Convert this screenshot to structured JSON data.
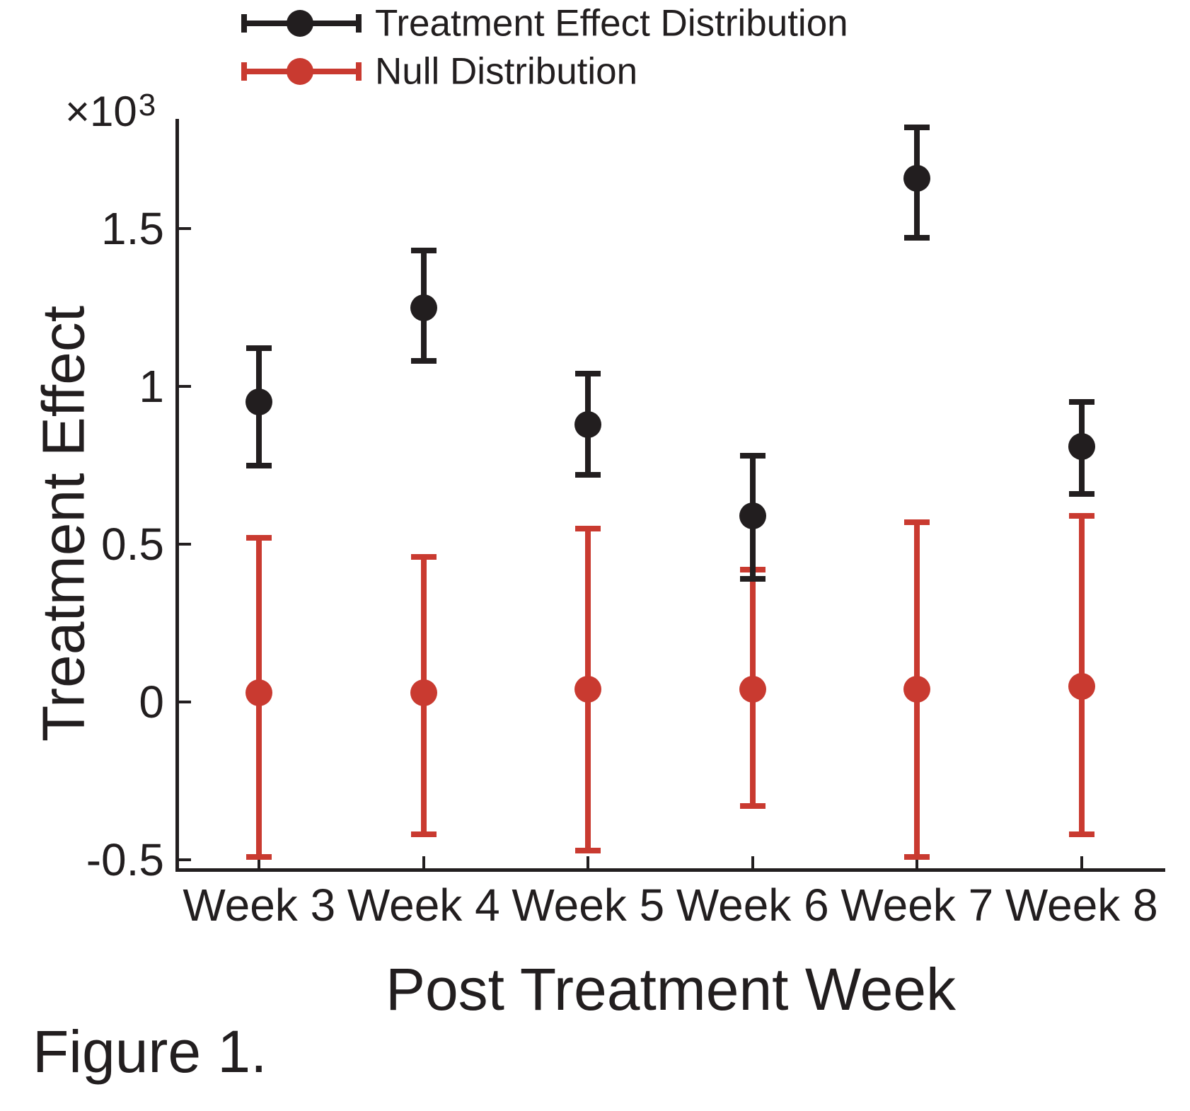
{
  "legend": {
    "items": [
      {
        "label": "Treatment Effect Distribution",
        "color": "#221e1f",
        "marker": "errorbar-with-circle"
      },
      {
        "label": "Null Distribution",
        "color": "#c93a30",
        "marker": "errorbar-with-circle"
      }
    ]
  },
  "y_axis": {
    "label": "Treatment Effect",
    "multiplier_base": "×10",
    "multiplier_exp": "3",
    "tick_labels": [
      "1.5",
      "1",
      "0.5",
      "0",
      "-0.5"
    ]
  },
  "x_axis": {
    "label": "Post Treatment Week",
    "tick_labels": [
      "Week 3",
      "Week 4",
      "Week 5",
      "Week 6",
      "Week 7",
      "Week 8"
    ]
  },
  "caption": "Figure 1.",
  "chart_data": {
    "type": "errorbar",
    "title": "",
    "categories": [
      "Week 3",
      "Week 4",
      "Week 5",
      "Week 6",
      "Week 7",
      "Week 8"
    ],
    "xlabel": "Post Treatment Week",
    "ylabel": "Treatment Effect",
    "y_axis_multiplier": "×10³",
    "value_scale": 1000,
    "y_ticks": [
      1.5,
      1,
      0.5,
      0,
      -0.5
    ],
    "ylim": [
      -0.53,
      1.85
    ],
    "grid": false,
    "legend_position": "top-left",
    "series": [
      {
        "name": "Treatment Effect Distribution",
        "color": "#221e1f",
        "mean": [
          0.95,
          1.25,
          0.88,
          0.59,
          1.66,
          0.81
        ],
        "lower": [
          0.75,
          1.08,
          0.72,
          0.39,
          1.47,
          0.66
        ],
        "upper": [
          1.12,
          1.43,
          1.04,
          0.78,
          1.82,
          0.95
        ]
      },
      {
        "name": "Null Distribution",
        "color": "#c93a30",
        "mean": [
          0.03,
          0.03,
          0.04,
          0.04,
          0.04,
          0.05
        ],
        "lower": [
          -0.49,
          -0.42,
          -0.47,
          -0.33,
          -0.49,
          -0.42
        ],
        "upper": [
          0.52,
          0.46,
          0.55,
          0.42,
          0.57,
          0.59
        ]
      }
    ]
  }
}
